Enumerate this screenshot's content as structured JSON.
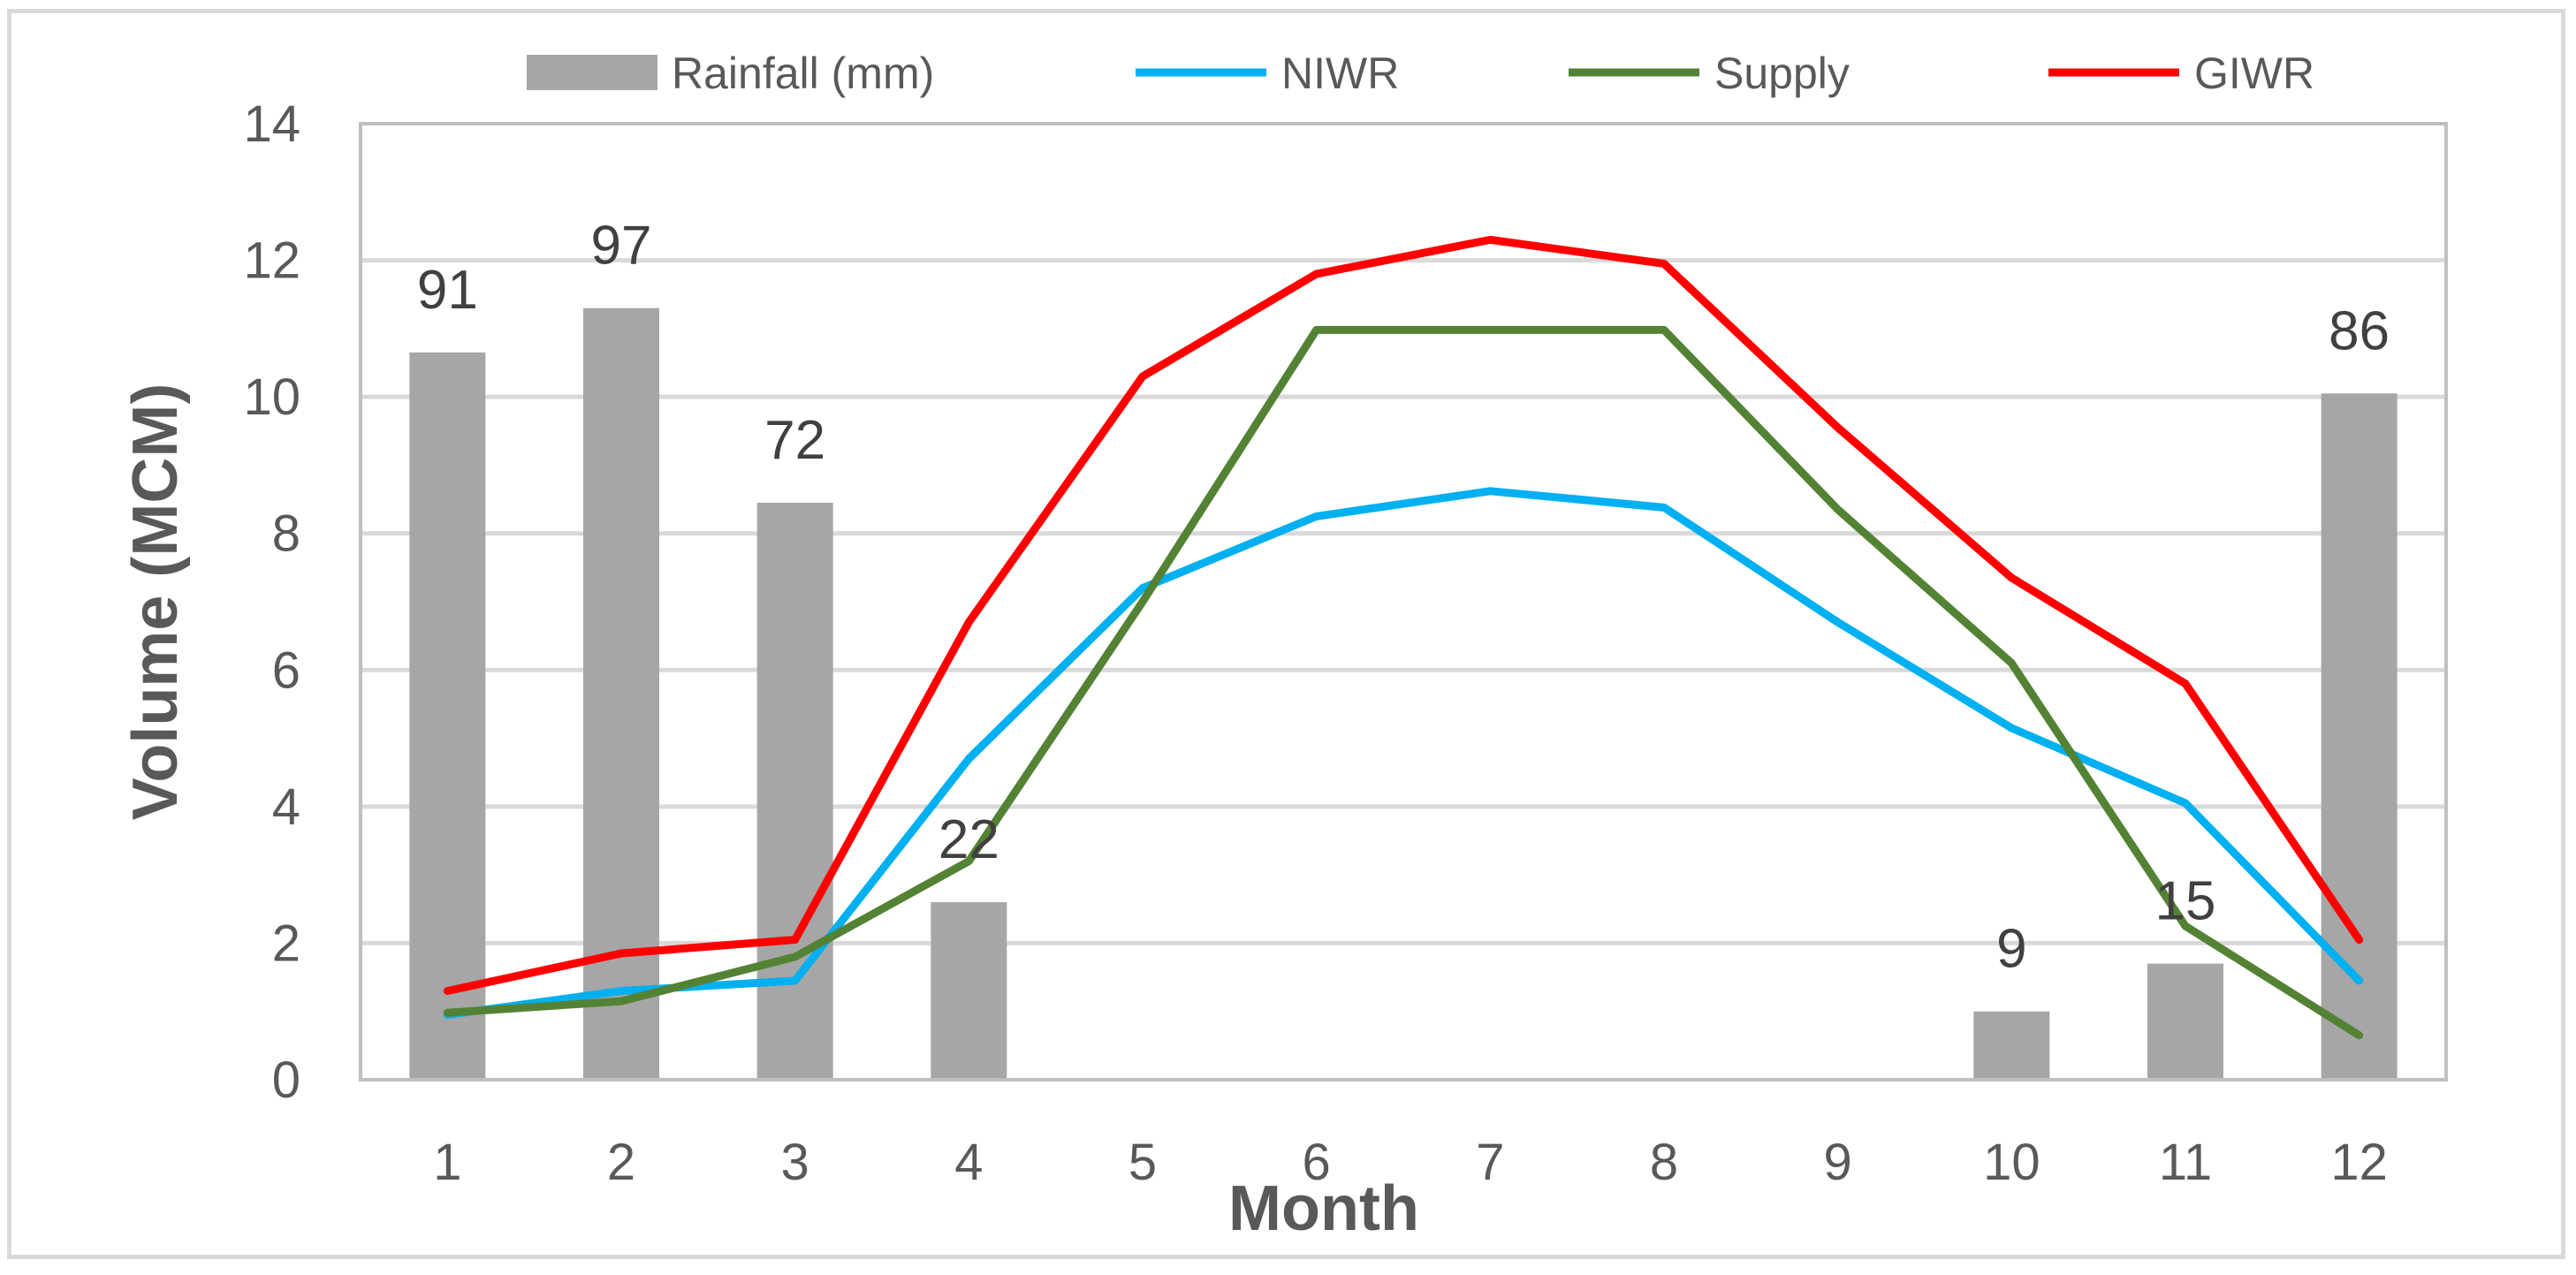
{
  "chart_data": {
    "type": "bar+line",
    "title": "",
    "xlabel": "Month",
    "ylabel": "Volume (MCM)",
    "ylim": [
      0,
      14
    ],
    "yticks": [
      "0",
      "2",
      "4",
      "6",
      "8",
      "10",
      "12",
      "14"
    ],
    "categories": [
      "1",
      "2",
      "3",
      "4",
      "5",
      "6",
      "7",
      "8",
      "9",
      "10",
      "11",
      "12"
    ],
    "grid": true,
    "legend_position": "top",
    "bars": {
      "name": "Rainfall (mm)",
      "color": "#a6a6a6",
      "values": [
        10.65,
        11.3,
        8.45,
        2.6,
        0,
        0,
        0,
        0,
        0,
        1.0,
        1.7,
        10.05
      ],
      "labels": [
        "91",
        "97",
        "72",
        "22",
        "",
        "",
        "",
        "",
        "",
        "9",
        "15",
        "86"
      ]
    },
    "series": [
      {
        "name": "NIWR",
        "color": "#00b0f0",
        "values": [
          0.95,
          1.3,
          1.45,
          4.7,
          7.2,
          8.25,
          8.62,
          8.38,
          6.7,
          5.15,
          4.05,
          1.45
        ]
      },
      {
        "name": "Supply",
        "color": "#548235",
        "values": [
          0.98,
          1.15,
          1.8,
          3.2,
          7.0,
          10.98,
          10.98,
          10.98,
          8.35,
          6.1,
          2.25,
          0.65
        ]
      },
      {
        "name": "GIWR",
        "color": "#ff0000",
        "values": [
          1.3,
          1.85,
          2.05,
          6.7,
          10.3,
          11.8,
          12.3,
          11.95,
          9.55,
          7.35,
          5.8,
          2.05
        ]
      }
    ]
  }
}
